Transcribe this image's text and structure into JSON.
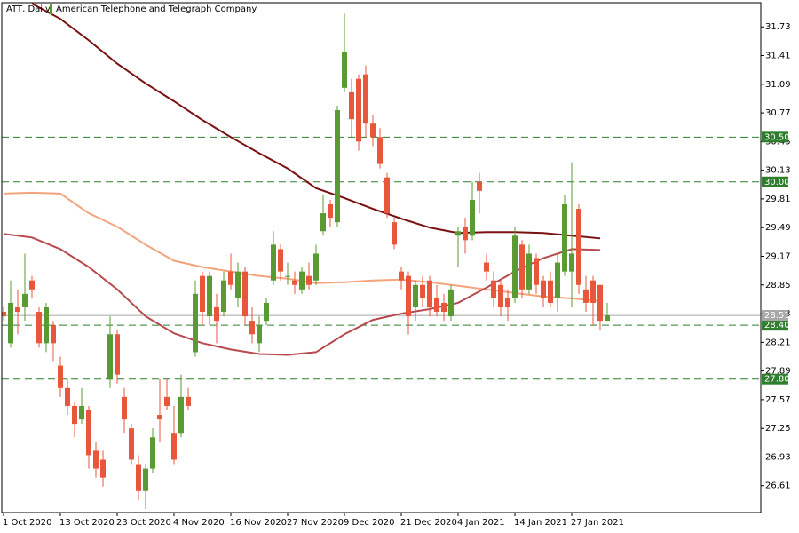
{
  "chart_data": {
    "type": "candlestick",
    "title": "ATT, Daily",
    "subtitle": "American Telephone and Telegraph Company",
    "categories": [
      "1 Oct 2020",
      null,
      null,
      null,
      null,
      null,
      null,
      null,
      "13 Oct 2020",
      null,
      null,
      null,
      null,
      null,
      null,
      null,
      "23 Oct 2020",
      null,
      null,
      null,
      null,
      null,
      null,
      null,
      "4 Nov 2020",
      null,
      null,
      null,
      null,
      null,
      null,
      null,
      "16 Nov 2020",
      null,
      null,
      null,
      null,
      null,
      null,
      null,
      "27 Nov 2020",
      null,
      null,
      null,
      null,
      null,
      null,
      null,
      "9 Dec 2020",
      null,
      null,
      null,
      null,
      null,
      null,
      null,
      "21 Dec 2020",
      null,
      null,
      null,
      null,
      null,
      null,
      null,
      "4 Jan 2021",
      null,
      null,
      null,
      null,
      null,
      null,
      null,
      "14 Jan 2021",
      null,
      null,
      null,
      null,
      null,
      null,
      null,
      "27 Jan 2021",
      null,
      null,
      null,
      null,
      null
    ],
    "open": [
      28.55,
      28.2,
      28.6,
      28.6,
      28.9,
      28.55,
      28.2,
      28.4,
      27.95,
      27.7,
      27.5,
      27.35,
      27.45,
      27.0,
      26.9,
      27.8,
      28.3,
      27.6,
      27.25,
      26.85,
      26.55,
      26.8,
      27.4,
      27.6,
      27.2,
      27.2,
      27.6,
      28.1,
      28.95,
      28.5,
      28.6,
      28.55,
      29.0,
      28.7,
      29.0,
      28.45,
      28.2,
      28.45,
      28.9,
      29.25,
      28.95,
      28.9,
      28.8,
      28.95,
      28.9,
      29.45,
      29.75,
      29.55,
      31.05,
      31.0,
      31.15,
      31.2,
      30.65,
      30.5,
      30.05,
      29.55,
      29.0,
      28.95,
      28.6,
      28.85,
      28.9,
      28.7,
      28.65,
      28.5,
      29.4,
      29.5,
      29.4,
      30.0,
      29.1,
      28.9,
      28.85,
      28.7,
      28.7,
      29.3,
      28.8,
      29.15,
      28.9,
      28.9,
      28.7,
      29.0,
      29.0,
      29.7,
      28.8,
      28.9,
      28.85,
      28.45
    ],
    "high": [
      28.6,
      28.9,
      28.8,
      29.2,
      28.95,
      28.6,
      28.65,
      28.45,
      28.05,
      27.8,
      27.55,
      27.7,
      27.5,
      27.1,
      27.0,
      28.5,
      28.35,
      27.7,
      27.3,
      26.95,
      26.85,
      27.25,
      27.8,
      27.8,
      27.5,
      27.85,
      27.7,
      28.9,
      29.0,
      29.0,
      28.75,
      29.0,
      29.2,
      29.1,
      29.05,
      28.6,
      28.5,
      28.7,
      29.45,
      29.3,
      29.1,
      29.0,
      29.05,
      29.1,
      29.3,
      29.85,
      29.8,
      30.85,
      31.88,
      31.15,
      31.2,
      31.3,
      30.75,
      30.6,
      30.1,
      29.6,
      29.05,
      29.0,
      28.9,
      28.95,
      28.95,
      28.85,
      28.75,
      28.85,
      29.5,
      29.6,
      30.0,
      30.1,
      29.2,
      29.0,
      28.9,
      28.8,
      29.5,
      29.35,
      29.3,
      29.2,
      28.95,
      29.0,
      29.2,
      29.85,
      30.22,
      29.75,
      28.95,
      28.95,
      28.85,
      28.65
    ],
    "low": [
      28.45,
      28.15,
      28.3,
      28.45,
      28.7,
      28.15,
      28.1,
      28.0,
      27.6,
      27.4,
      27.15,
      27.3,
      26.8,
      26.7,
      26.6,
      27.7,
      27.75,
      27.2,
      26.85,
      26.45,
      26.35,
      26.75,
      27.1,
      27.45,
      26.85,
      27.15,
      27.45,
      28.05,
      28.4,
      28.4,
      28.2,
      28.5,
      28.8,
      28.6,
      28.4,
      28.2,
      28.1,
      28.4,
      28.85,
      28.9,
      28.85,
      28.75,
      28.75,
      28.8,
      28.85,
      29.4,
      29.5,
      29.5,
      31.0,
      30.5,
      30.35,
      30.5,
      30.4,
      30.15,
      29.6,
      29.25,
      28.8,
      28.3,
      28.45,
      28.6,
      28.5,
      28.5,
      28.45,
      28.45,
      29.05,
      29.2,
      29.35,
      29.65,
      28.9,
      28.6,
      28.5,
      28.45,
      28.65,
      28.7,
      28.75,
      28.75,
      28.6,
      28.6,
      28.55,
      28.95,
      28.6,
      28.75,
      28.55,
      28.4,
      28.35,
      28.45
    ],
    "close": [
      28.5,
      28.65,
      28.55,
      28.75,
      28.8,
      28.2,
      28.6,
      28.2,
      27.7,
      27.5,
      27.3,
      27.5,
      26.95,
      26.8,
      26.7,
      28.3,
      27.85,
      27.35,
      26.9,
      26.55,
      26.8,
      27.15,
      27.35,
      27.5,
      26.9,
      27.6,
      27.5,
      28.75,
      28.55,
      28.95,
      28.45,
      28.9,
      28.85,
      29.0,
      28.5,
      28.3,
      28.4,
      28.65,
      29.3,
      29.0,
      28.95,
      28.85,
      29.0,
      28.85,
      29.2,
      29.65,
      29.6,
      30.8,
      31.45,
      30.7,
      30.45,
      30.65,
      30.5,
      30.2,
      29.65,
      29.3,
      28.9,
      28.5,
      28.85,
      28.7,
      28.6,
      28.55,
      28.55,
      28.8,
      29.45,
      29.35,
      29.8,
      29.9,
      29.0,
      28.7,
      28.6,
      28.6,
      29.4,
      28.8,
      29.2,
      28.85,
      28.7,
      28.65,
      29.1,
      29.75,
      29.2,
      28.85,
      28.65,
      28.65,
      28.45,
      28.51
    ],
    "up_color": "#5a9a32",
    "down_color": "#e8573b",
    "ylim": [
      26.31,
      32.0
    ],
    "yticks": [
      26.61,
      26.93,
      27.25,
      27.57,
      27.89,
      28.21,
      28.53,
      28.85,
      29.17,
      29.49,
      29.81,
      30.13,
      30.45,
      30.77,
      31.09,
      31.41,
      31.73
    ],
    "overlays": [
      {
        "color": "#7a1010",
        "x": [
          4,
          8,
          12,
          16,
          20,
          24,
          28,
          32,
          36,
          40,
          44,
          48,
          52,
          56,
          60,
          64,
          68,
          72,
          76,
          80,
          84
        ],
        "values": [
          31.99,
          31.82,
          31.58,
          31.32,
          31.1,
          30.9,
          30.69,
          30.5,
          30.32,
          30.15,
          29.93,
          29.82,
          29.7,
          29.59,
          29.49,
          29.43,
          29.44,
          29.44,
          29.43,
          29.4,
          29.37
        ]
      },
      {
        "color": "#f4a37c",
        "x": [
          0,
          4,
          8,
          12,
          16,
          20,
          24,
          28,
          32,
          36,
          40,
          44,
          48,
          52,
          56,
          60,
          64,
          68,
          72,
          76,
          80,
          84
        ],
        "values": [
          29.87,
          29.88,
          29.87,
          29.65,
          29.5,
          29.3,
          29.12,
          29.05,
          29.0,
          28.95,
          28.92,
          28.87,
          28.88,
          28.9,
          28.91,
          28.88,
          28.84,
          28.8,
          28.76,
          28.72,
          28.7,
          28.67
        ]
      },
      {
        "color": "#b8494d",
        "x": [
          0,
          4,
          8,
          12,
          16,
          20,
          24,
          28,
          32,
          36,
          40,
          44,
          48,
          52,
          56,
          60,
          64,
          68,
          72,
          76,
          80,
          84
        ],
        "values": [
          29.42,
          29.38,
          29.25,
          29.05,
          28.8,
          28.5,
          28.31,
          28.2,
          28.13,
          28.08,
          28.07,
          28.1,
          28.3,
          28.46,
          28.53,
          28.58,
          28.65,
          28.82,
          29.0,
          29.15,
          29.25,
          29.24
        ]
      }
    ],
    "levels": [
      {
        "value": 30.5,
        "label": "30.50"
      },
      {
        "value": 30.0,
        "label": "30.00"
      },
      {
        "value": 28.4,
        "label": "28.40"
      },
      {
        "value": 27.8,
        "label": "27.80"
      }
    ],
    "level_color": "#2f7d2f",
    "last_price": 28.51,
    "last_price_color": "#a8a8a8"
  }
}
